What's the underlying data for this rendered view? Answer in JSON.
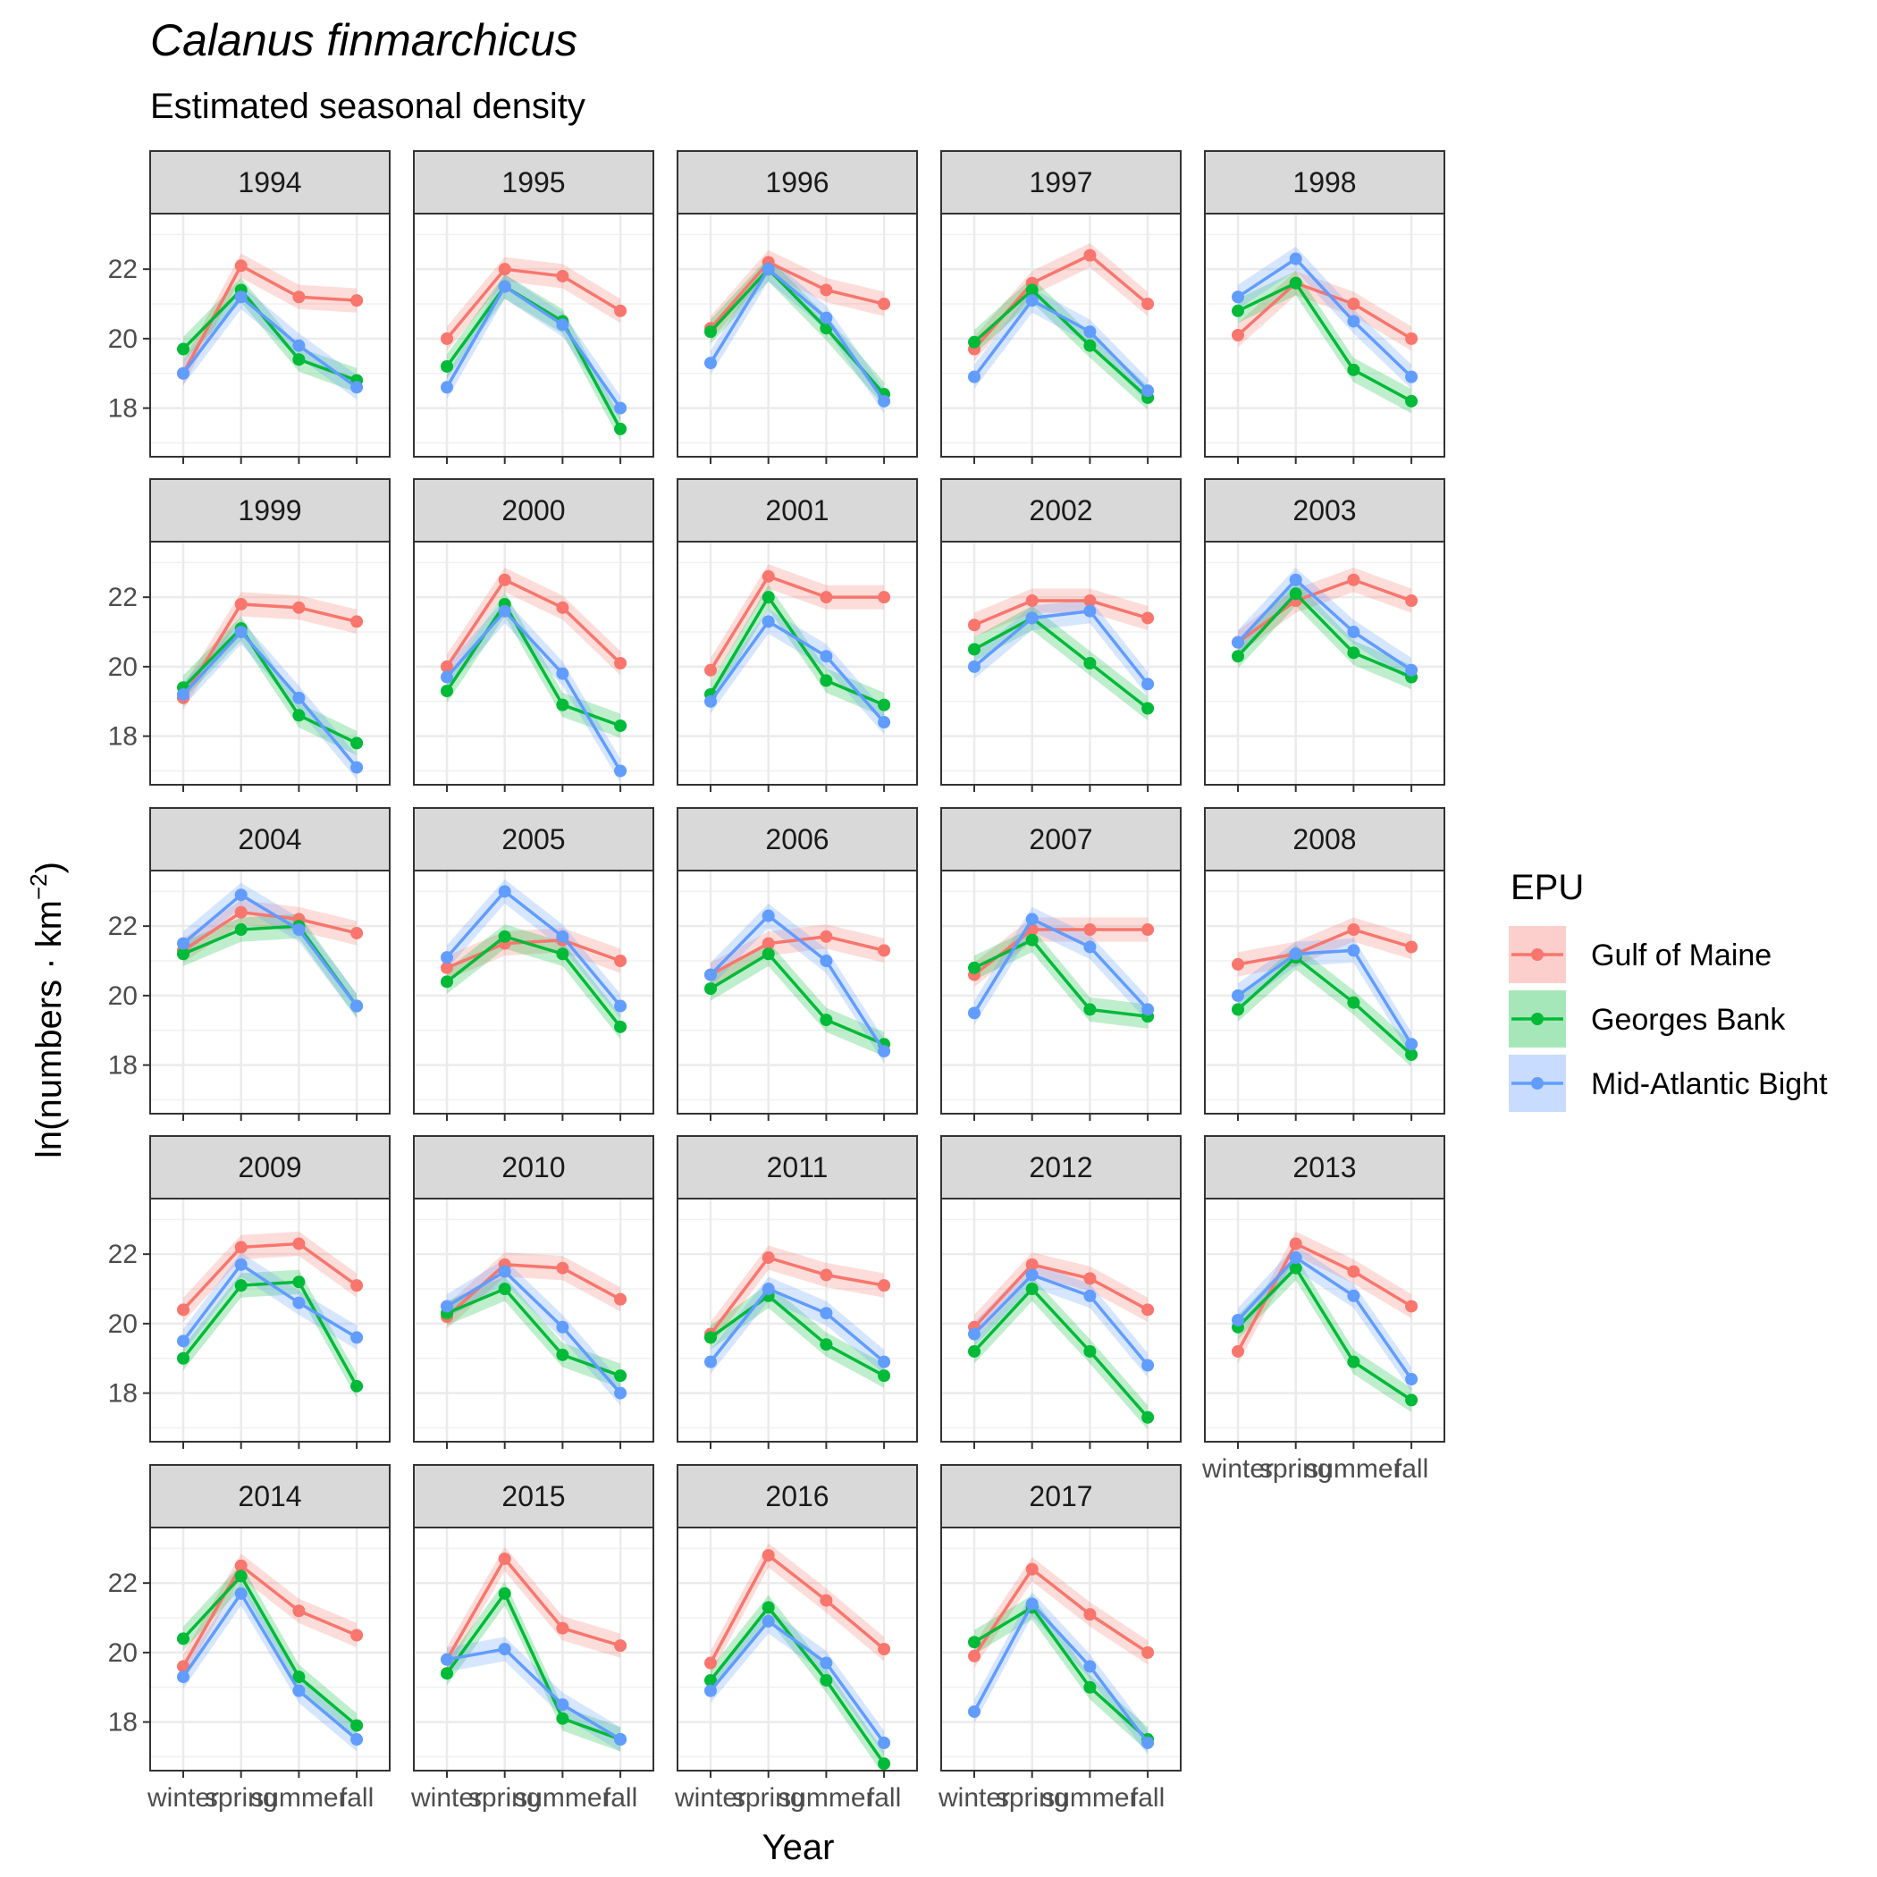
{
  "chart_data": {
    "type": "line",
    "title": "Calanus finmarchicus",
    "subtitle": "Estimated seasonal density",
    "xlabel": "Year",
    "ylabel_parts": {
      "pre": "ln(numbers · km",
      "sup": "−2",
      "post": ")"
    },
    "seasons": [
      "winter",
      "spring",
      "summer",
      "fall"
    ],
    "y_ticks": [
      18,
      20,
      22
    ],
    "ylim": [
      16.6,
      23.6
    ],
    "grid": true,
    "legend_position": "right",
    "legend": {
      "title": "EPU",
      "items": [
        {
          "name": "Gulf of Maine",
          "color": "#F8766D"
        },
        {
          "name": "Georges Bank",
          "color": "#00BA38"
        },
        {
          "name": "Mid-Atlantic Bight",
          "color": "#619CFF"
        }
      ]
    },
    "panels": [
      {
        "year": "1994",
        "gom": [
          19.0,
          22.1,
          21.2,
          21.1
        ],
        "gb": [
          19.7,
          21.4,
          19.4,
          18.8
        ],
        "mab": [
          19.0,
          21.2,
          19.8,
          18.6
        ]
      },
      {
        "year": "1995",
        "gom": [
          20.0,
          22.0,
          21.8,
          20.8
        ],
        "gb": [
          19.2,
          21.5,
          20.5,
          17.4
        ],
        "mab": [
          18.6,
          21.5,
          20.4,
          18.0
        ]
      },
      {
        "year": "1996",
        "gom": [
          20.3,
          22.2,
          21.4,
          21.0
        ],
        "gb": [
          20.2,
          22.0,
          20.3,
          18.4
        ],
        "mab": [
          19.3,
          22.0,
          20.6,
          18.2
        ]
      },
      {
        "year": "1997",
        "gom": [
          19.7,
          21.6,
          22.4,
          21.0
        ],
        "gb": [
          19.9,
          21.4,
          19.8,
          18.3
        ],
        "mab": [
          18.9,
          21.1,
          20.2,
          18.5
        ]
      },
      {
        "year": "1998",
        "gom": [
          20.1,
          21.6,
          21.0,
          20.0
        ],
        "gb": [
          20.8,
          21.6,
          19.1,
          18.2
        ],
        "mab": [
          21.2,
          22.3,
          20.5,
          18.9
        ]
      },
      {
        "year": "1999",
        "gom": [
          19.1,
          21.8,
          21.7,
          21.3
        ],
        "gb": [
          19.4,
          21.1,
          18.6,
          17.8
        ],
        "mab": [
          19.2,
          21.0,
          19.1,
          17.1
        ]
      },
      {
        "year": "2000",
        "gom": [
          20.0,
          22.5,
          21.7,
          20.1
        ],
        "gb": [
          19.3,
          21.8,
          18.9,
          18.3
        ],
        "mab": [
          19.7,
          21.6,
          19.8,
          17.0
        ]
      },
      {
        "year": "2001",
        "gom": [
          19.9,
          22.6,
          22.0,
          22.0
        ],
        "gb": [
          19.2,
          22.0,
          19.6,
          18.9
        ],
        "mab": [
          19.0,
          21.3,
          20.3,
          18.4
        ]
      },
      {
        "year": "2002",
        "gom": [
          21.2,
          21.9,
          21.9,
          21.4
        ],
        "gb": [
          20.5,
          21.4,
          20.1,
          18.8
        ],
        "mab": [
          20.0,
          21.4,
          21.6,
          19.5
        ]
      },
      {
        "year": "2003",
        "gom": [
          20.7,
          21.9,
          22.5,
          21.9
        ],
        "gb": [
          20.3,
          22.1,
          20.4,
          19.7
        ],
        "mab": [
          20.7,
          22.5,
          21.0,
          19.9
        ]
      },
      {
        "year": "2004",
        "gom": [
          21.3,
          22.4,
          22.2,
          21.8
        ],
        "gb": [
          21.2,
          21.9,
          22.0,
          19.7
        ],
        "mab": [
          21.5,
          22.9,
          21.9,
          19.7
        ]
      },
      {
        "year": "2005",
        "gom": [
          20.8,
          21.5,
          21.6,
          21.0
        ],
        "gb": [
          20.4,
          21.7,
          21.2,
          19.1
        ],
        "mab": [
          21.1,
          23.0,
          21.7,
          19.7
        ]
      },
      {
        "year": "2006",
        "gom": [
          20.6,
          21.5,
          21.7,
          21.3
        ],
        "gb": [
          20.2,
          21.2,
          19.3,
          18.6
        ],
        "mab": [
          20.6,
          22.3,
          21.0,
          18.4
        ]
      },
      {
        "year": "2007",
        "gom": [
          20.6,
          21.9,
          21.9,
          21.9
        ],
        "gb": [
          20.8,
          21.6,
          19.6,
          19.4
        ],
        "mab": [
          19.5,
          22.2,
          21.4,
          19.6
        ]
      },
      {
        "year": "2008",
        "gom": [
          20.9,
          21.2,
          21.9,
          21.4
        ],
        "gb": [
          19.6,
          21.1,
          19.8,
          18.3
        ],
        "mab": [
          20.0,
          21.2,
          21.3,
          18.6
        ]
      },
      {
        "year": "2009",
        "gom": [
          20.4,
          22.2,
          22.3,
          21.1
        ],
        "gb": [
          19.0,
          21.1,
          21.2,
          18.2
        ],
        "mab": [
          19.5,
          21.7,
          20.6,
          19.6
        ]
      },
      {
        "year": "2010",
        "gom": [
          20.2,
          21.7,
          21.6,
          20.7
        ],
        "gb": [
          20.3,
          21.0,
          19.1,
          18.5
        ],
        "mab": [
          20.5,
          21.5,
          19.9,
          18.0
        ]
      },
      {
        "year": "2011",
        "gom": [
          19.7,
          21.9,
          21.4,
          21.1
        ],
        "gb": [
          19.6,
          20.8,
          19.4,
          18.5
        ],
        "mab": [
          18.9,
          21.0,
          20.3,
          18.9
        ]
      },
      {
        "year": "2012",
        "gom": [
          19.9,
          21.7,
          21.3,
          20.4
        ],
        "gb": [
          19.2,
          21.0,
          19.2,
          17.3
        ],
        "mab": [
          19.7,
          21.4,
          20.8,
          18.8
        ]
      },
      {
        "year": "2013",
        "gom": [
          19.2,
          22.3,
          21.5,
          20.5
        ],
        "gb": [
          19.9,
          21.6,
          18.9,
          17.8
        ],
        "mab": [
          20.1,
          21.9,
          20.8,
          18.4
        ]
      },
      {
        "year": "2014",
        "gom": [
          19.6,
          22.5,
          21.2,
          20.5
        ],
        "gb": [
          20.4,
          22.2,
          19.3,
          17.9
        ],
        "mab": [
          19.3,
          21.7,
          18.9,
          17.5
        ]
      },
      {
        "year": "2015",
        "gom": [
          19.8,
          22.7,
          20.7,
          20.2
        ],
        "gb": [
          19.4,
          21.7,
          18.1,
          17.5
        ],
        "mab": [
          19.8,
          20.1,
          18.5,
          17.5
        ]
      },
      {
        "year": "2016",
        "gom": [
          19.7,
          22.8,
          21.5,
          20.1
        ],
        "gb": [
          19.2,
          21.3,
          19.2,
          16.8
        ],
        "mab": [
          18.9,
          20.9,
          19.7,
          17.4
        ]
      },
      {
        "year": "2017",
        "gom": [
          19.9,
          22.4,
          21.1,
          20.0
        ],
        "gb": [
          20.3,
          21.3,
          19.0,
          17.5
        ],
        "mab": [
          18.3,
          21.4,
          19.6,
          17.4
        ]
      }
    ]
  }
}
